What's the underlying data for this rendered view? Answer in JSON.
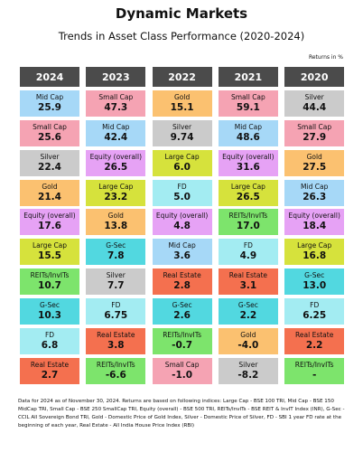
{
  "header": {
    "title": "Dynamic Markets",
    "subtitle": "Trends in Asset Class Performance (2020-2024)",
    "unit_note": "Returns in %"
  },
  "table": {
    "columns": [
      {
        "year": "2024",
        "cells": [
          {
            "label": "Mid Cap",
            "value": "25.9",
            "color": "#a6d8f7"
          },
          {
            "label": "Small Cap",
            "value": "25.6",
            "color": "#f5a3b3"
          },
          {
            "label": "Silver",
            "value": "22.4",
            "color": "#cbcbcb"
          },
          {
            "label": "Gold",
            "value": "21.4",
            "color": "#fbc170"
          },
          {
            "label": "Equity (overall)",
            "value": "17.6",
            "color": "#e6a2f5"
          },
          {
            "label": "Large Cap",
            "value": "15.5",
            "color": "#d6e23c"
          },
          {
            "label": "REITs/InvITs",
            "value": "10.7",
            "color": "#7de46c"
          },
          {
            "label": "G-Sec",
            "value": "10.3",
            "color": "#52d8e0"
          },
          {
            "label": "FD",
            "value": "6.8",
            "color": "#a3ecf2"
          },
          {
            "label": "Real Estate",
            "value": "2.7",
            "color": "#f4704f"
          }
        ]
      },
      {
        "year": "2023",
        "cells": [
          {
            "label": "Small Cap",
            "value": "47.3",
            "color": "#f5a3b3"
          },
          {
            "label": "Mid Cap",
            "value": "42.4",
            "color": "#a6d8f7"
          },
          {
            "label": "Equity (overall)",
            "value": "26.5",
            "color": "#e6a2f5"
          },
          {
            "label": "Large Cap",
            "value": "23.2",
            "color": "#d6e23c"
          },
          {
            "label": "Gold",
            "value": "13.8",
            "color": "#fbc170"
          },
          {
            "label": "G-Sec",
            "value": "7.8",
            "color": "#52d8e0"
          },
          {
            "label": "Silver",
            "value": "7.7",
            "color": "#cbcbcb"
          },
          {
            "label": "FD",
            "value": "6.75",
            "color": "#a3ecf2"
          },
          {
            "label": "Real Estate",
            "value": "3.8",
            "color": "#f4704f"
          },
          {
            "label": "REITs/InvITs",
            "value": "-6.6",
            "color": "#7de46c"
          }
        ]
      },
      {
        "year": "2022",
        "cells": [
          {
            "label": "Gold",
            "value": "15.1",
            "color": "#fbc170"
          },
          {
            "label": "Silver",
            "value": "9.74",
            "color": "#cbcbcb"
          },
          {
            "label": "Large Cap",
            "value": "6.0",
            "color": "#d6e23c"
          },
          {
            "label": "FD",
            "value": "5.0",
            "color": "#a3ecf2"
          },
          {
            "label": "Equity (overall)",
            "value": "4.8",
            "color": "#e6a2f5"
          },
          {
            "label": "Mid Cap",
            "value": "3.6",
            "color": "#a6d8f7"
          },
          {
            "label": "Real Estate",
            "value": "2.8",
            "color": "#f4704f"
          },
          {
            "label": "G-Sec",
            "value": "2.6",
            "color": "#52d8e0"
          },
          {
            "label": "REITs/InvITs",
            "value": "-0.7",
            "color": "#7de46c"
          },
          {
            "label": "Small Cap",
            "value": "-1.0",
            "color": "#f5a3b3"
          }
        ]
      },
      {
        "year": "2021",
        "cells": [
          {
            "label": "Small Cap",
            "value": "59.1",
            "color": "#f5a3b3"
          },
          {
            "label": "Mid Cap",
            "value": "48.6",
            "color": "#a6d8f7"
          },
          {
            "label": "Equity (overall)",
            "value": "31.6",
            "color": "#e6a2f5"
          },
          {
            "label": "Large Cap",
            "value": "26.5",
            "color": "#d6e23c"
          },
          {
            "label": "REITs/InvITs",
            "value": "17.0",
            "color": "#7de46c"
          },
          {
            "label": "FD",
            "value": "4.9",
            "color": "#a3ecf2"
          },
          {
            "label": "Real Estate",
            "value": "3.1",
            "color": "#f4704f"
          },
          {
            "label": "G-Sec",
            "value": "2.2",
            "color": "#52d8e0"
          },
          {
            "label": "Gold",
            "value": "-4.0",
            "color": "#fbc170"
          },
          {
            "label": "Silver",
            "value": "-8.2",
            "color": "#cbcbcb"
          }
        ]
      },
      {
        "year": "2020",
        "cells": [
          {
            "label": "Silver",
            "value": "44.4",
            "color": "#cbcbcb"
          },
          {
            "label": "Small Cap",
            "value": "27.9",
            "color": "#f5a3b3"
          },
          {
            "label": "Gold",
            "value": "27.5",
            "color": "#fbc170"
          },
          {
            "label": "Mid Cap",
            "value": "26.3",
            "color": "#a6d8f7"
          },
          {
            "label": "Equity (overall)",
            "value": "18.4",
            "color": "#e6a2f5"
          },
          {
            "label": "Large Cap",
            "value": "16.8",
            "color": "#d6e23c"
          },
          {
            "label": "G-Sec",
            "value": "13.0",
            "color": "#52d8e0"
          },
          {
            "label": "FD",
            "value": "6.25",
            "color": "#a3ecf2"
          },
          {
            "label": "Real Estate",
            "value": "2.2",
            "color": "#f4704f"
          },
          {
            "label": "REITs/InvITs",
            "value": "-",
            "color": "#7de46c"
          }
        ]
      }
    ]
  },
  "footnote": "Data for 2024 as of November 30, 2024. Returns are based on following indices: Large Cap - BSE 100 TRI, Mid Cap - BSE 150 MidCap TRI, Small Cap - BSE 250 SmallCap TRI, Equity (overall) - BSE 500 TRI, REITs/InvITs - BSE REIT & InvIT Index (INR), G-Sec - CCIL All Sovereign Bond TRI, Gold - Domestic Price of Gold Index, Silver - Domestic Price of Silver, FD - SBI 1 year FD rate at the beginning of each year, Real Estate - All India House Price Index (RBI)"
}
